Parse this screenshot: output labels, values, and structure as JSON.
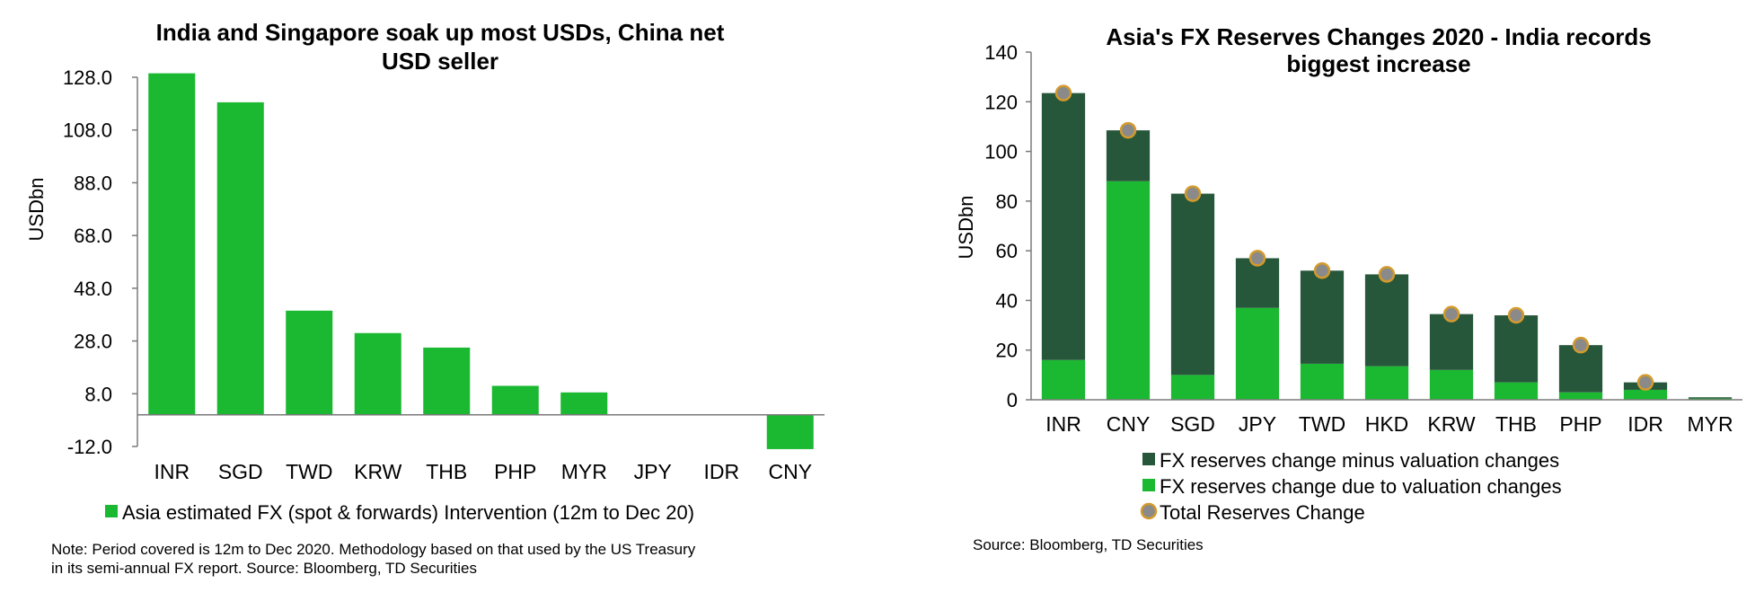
{
  "colors": {
    "bright_green": "#1bb832",
    "dark_green": "#27573a",
    "marker_fill": "#8a8a8a",
    "marker_edge": "#d49a2c",
    "axis": "#7a7a7a"
  },
  "chart_data": [
    {
      "type": "bar",
      "title_line1": "India and Singapore soak up most USDs, China net",
      "title_line2": "USD seller",
      "ylabel": "USDbn",
      "ylim": [
        -12,
        128
      ],
      "yticks": [
        -12.0,
        8.0,
        28.0,
        48.0,
        68.0,
        88.0,
        108.0,
        128.0
      ],
      "ytick_labels": [
        "-12.0",
        "8.0",
        "28.0",
        "48.0",
        "68.0",
        "88.0",
        "108.0",
        "128.0"
      ],
      "categories": [
        "INR",
        "SGD",
        "TWD",
        "KRW",
        "THB",
        "PHP",
        "MYR",
        "JPY",
        "IDR",
        "CNY"
      ],
      "series": [
        {
          "name": "Asia estimated FX (spot & forwards) Intervention (12m to Dec 20)",
          "values": [
            129.5,
            118.5,
            39.5,
            31.0,
            25.5,
            11.0,
            8.5,
            0,
            0,
            -13.0
          ]
        }
      ],
      "note_line1": "Note: Period covered is 12m to Dec 2020. Methodology based on that used by the US Treasury",
      "note_line2": "in its semi-annual FX report. Source: Bloomberg, TD Securities"
    },
    {
      "type": "bar",
      "stacked": true,
      "title_line1": "Asia's FX Reserves Changes 2020 - India records",
      "title_line2": "biggest increase",
      "ylabel": "USDbn",
      "ylim": [
        0,
        140
      ],
      "yticks": [
        0,
        20,
        40,
        60,
        80,
        100,
        120,
        140
      ],
      "ytick_labels": [
        "0",
        "20",
        "40",
        "60",
        "80",
        "100",
        "120",
        "140"
      ],
      "categories": [
        "INR",
        "CNY",
        "SGD",
        "JPY",
        "TWD",
        "HKD",
        "KRW",
        "THB",
        "PHP",
        "IDR",
        "MYR"
      ],
      "series": [
        {
          "name": "FX reserves change due to valuation changes",
          "values": [
            16,
            88,
            10,
            37,
            14.5,
            13.5,
            12,
            7,
            3,
            4,
            0.5
          ]
        },
        {
          "name": "FX reserves change minus valuation changes",
          "values": [
            107.5,
            20.5,
            73,
            20,
            37.5,
            37,
            22.5,
            27,
            19,
            3,
            0.5
          ]
        }
      ],
      "markers": {
        "name": "Total Reserves Change",
        "values": [
          123.5,
          108.5,
          83,
          57,
          52,
          50.5,
          34.5,
          34,
          22,
          7,
          1
        ]
      },
      "source": "Source: Bloomberg, TD Securities"
    }
  ]
}
